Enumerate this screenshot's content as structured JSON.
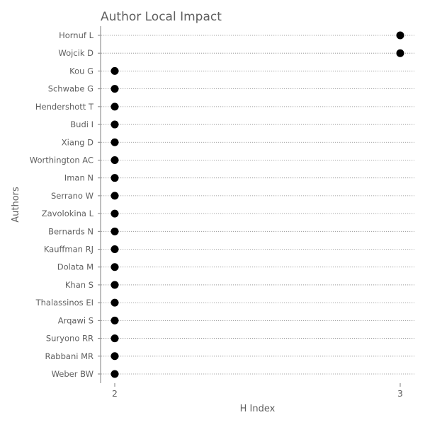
{
  "chart_data": {
    "type": "scatter",
    "style": "dot-plot",
    "title": "Author Local Impact",
    "xlabel": "H Index",
    "ylabel": "Authors",
    "xlim": [
      2,
      3
    ],
    "xticks": [
      "2",
      "3"
    ],
    "grid": "horizontal-dotted",
    "legend": "none",
    "colors": {
      "marker": "#000000",
      "text": "#5f5f5f",
      "axis": "#7f7f7f",
      "grid": "#888888"
    },
    "categories": [
      "Hornuf L",
      "Wojcik D",
      "Kou G",
      "Schwabe G",
      "Hendershott T",
      "Budi I",
      "Xiang D",
      "Worthington AC",
      "Iman N",
      "Serrano W",
      "Zavolokina L",
      "Bernards N",
      "Kauffman RJ",
      "Dolata M",
      "Khan S",
      "Thalassinos EI",
      "Arqawi S",
      "Suryono RR",
      "Rabbani MR",
      "Weber BW"
    ],
    "values": [
      3,
      3,
      2,
      2,
      2,
      2,
      2,
      2,
      2,
      2,
      2,
      2,
      2,
      2,
      2,
      2,
      2,
      2,
      2,
      2
    ]
  }
}
